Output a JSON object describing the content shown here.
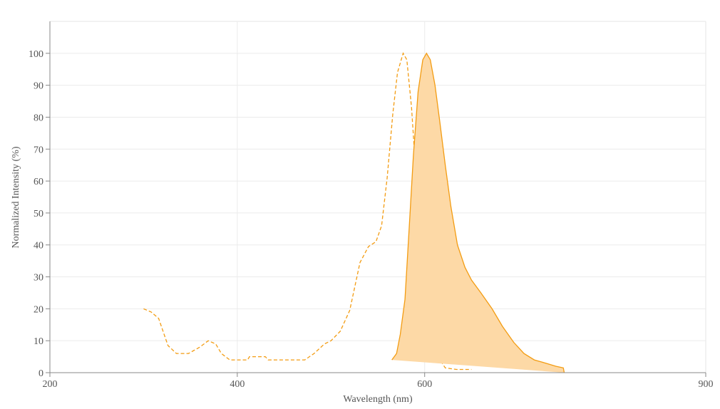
{
  "chart_data": {
    "type": "line",
    "x_label": "Wavelength (nm)",
    "y_label": "Normalized Intensity (%)",
    "xlim": [
      200,
      900
    ],
    "ylim": [
      0,
      110
    ],
    "xticks": [
      200,
      400,
      600,
      900
    ],
    "yticks": [
      0,
      10,
      20,
      30,
      40,
      50,
      60,
      70,
      80,
      90,
      100
    ],
    "grid": true,
    "series": [
      {
        "color": "#f39c12",
        "dashed": true,
        "filled": false,
        "x": [
          300,
          308,
          316,
          326,
          335,
          348,
          360,
          369,
          377,
          383,
          392,
          411,
          413,
          430,
          433,
          472,
          482,
          493,
          500,
          510,
          520,
          531,
          540,
          548,
          554,
          560,
          566,
          571,
          577,
          581,
          586,
          590,
          596,
          602,
          608,
          614,
          622,
          634,
          650
        ],
        "values": [
          20,
          19,
          17,
          8.5,
          6,
          6,
          8,
          10,
          9,
          6,
          4,
          4,
          5,
          5,
          4,
          4,
          6,
          9,
          10,
          13,
          19.5,
          34.5,
          39.5,
          41,
          46,
          61,
          81,
          94,
          100,
          98,
          83,
          65,
          45,
          27,
          12,
          5,
          1.5,
          1,
          1
        ]
      },
      {
        "color": "#f39c12",
        "fill_color": "#fdd9a6",
        "dashed": false,
        "filled": true,
        "x": [
          565,
          570,
          574,
          579,
          583,
          588,
          593,
          598,
          602,
          606,
          611,
          616,
          622,
          628,
          635,
          643,
          650,
          660,
          672,
          683,
          695,
          706,
          717,
          729,
          740,
          748,
          749
        ],
        "values": [
          4,
          6,
          12,
          23,
          43,
          68,
          88,
          98,
          100,
          98,
          90,
          79,
          65,
          52,
          40,
          33,
          29,
          25,
          20,
          14.5,
          9.5,
          6,
          4,
          3,
          2,
          1.5,
          0
        ]
      }
    ]
  }
}
